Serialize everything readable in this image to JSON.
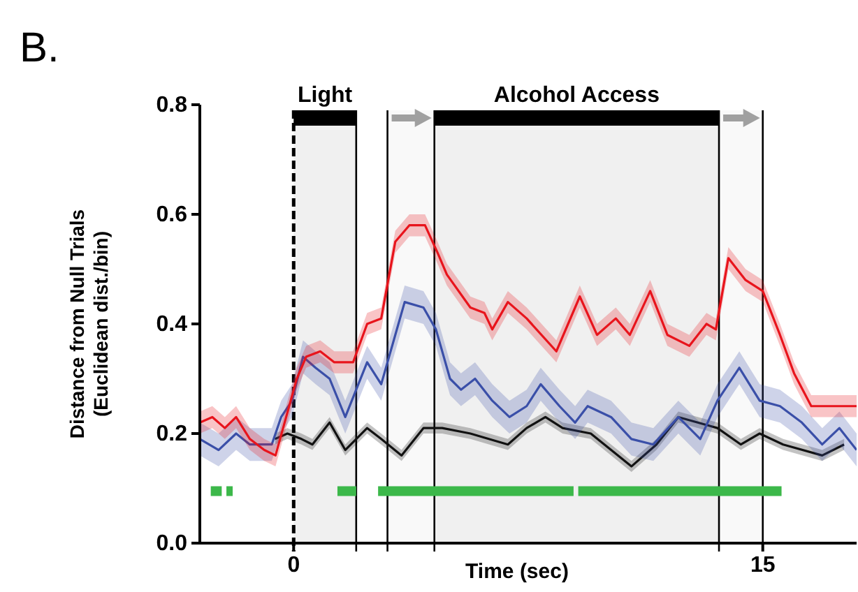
{
  "chart_data": {
    "type": "line",
    "title": "B.",
    "xlabel": "Time (sec)",
    "ylabel": "Distance from Null Trials\n(Euclidean dist./bin)",
    "xlim": [
      -3,
      18
    ],
    "xticks": [
      0,
      15
    ],
    "ylim": [
      0,
      0.8
    ],
    "yticks": [
      {
        "value": 0,
        "label": "0.0"
      },
      {
        "value": 0.2,
        "label": "0.2"
      },
      {
        "value": 0.4,
        "label": "0.4"
      },
      {
        "value": 0.6,
        "label": "0.6"
      },
      {
        "value": 0.8,
        "label": "0.8"
      }
    ],
    "grid": false,
    "ref_lines": [
      {
        "axis": "x",
        "value": 0,
        "line_style": "dashed"
      },
      {
        "axis": "x",
        "value": 2
      },
      {
        "axis": "x",
        "value": 3
      },
      {
        "axis": "x",
        "value": 4.5
      },
      {
        "axis": "x",
        "value": 13.6
      },
      {
        "axis": "x",
        "value": 15
      }
    ],
    "bands": [
      {
        "axis": "x",
        "from": 0,
        "to": 2,
        "label": "Light",
        "color": "#000000"
      },
      {
        "axis": "x",
        "from": 3,
        "to": 4.5,
        "color": "#a0a0a0"
      },
      {
        "axis": "x",
        "from": 4.5,
        "to": 13.6,
        "label": "Alcohol Access",
        "color": "#000000"
      },
      {
        "axis": "x",
        "from": 13.6,
        "to": 15,
        "color": "#a0a0a0"
      }
    ],
    "series": [
      {
        "color": "#e8141c",
        "x": [
          -3,
          -2.6,
          -2.2,
          -1.84,
          -1.4,
          -0.94,
          -0.58,
          0.1,
          0.4,
          0.85,
          1.3,
          1.9,
          2.35,
          2.8,
          3.25,
          3.7,
          4.2,
          4.6,
          4.9,
          5.65,
          6.1,
          6.35,
          6.85,
          7.45,
          8.4,
          9.15,
          9.7,
          10.3,
          10.75,
          11.4,
          11.95,
          12.65,
          13.2,
          13.5,
          13.9,
          14.45,
          15,
          15.55,
          16,
          16.55,
          17.3,
          18
        ],
        "values": [
          0.22,
          0.23,
          0.21,
          0.23,
          0.19,
          0.17,
          0.16,
          0.3,
          0.34,
          0.35,
          0.33,
          0.33,
          0.4,
          0.41,
          0.55,
          0.58,
          0.58,
          0.53,
          0.49,
          0.43,
          0.42,
          0.39,
          0.44,
          0.41,
          0.35,
          0.45,
          0.38,
          0.41,
          0.38,
          0.46,
          0.38,
          0.36,
          0.4,
          0.39,
          0.52,
          0.48,
          0.46,
          0.38,
          0.31,
          0.25,
          0.25,
          0.25
        ],
        "lower": [
          0.2,
          0.21,
          0.19,
          0.21,
          0.17,
          0.15,
          0.14,
          0.28,
          0.32,
          0.33,
          0.31,
          0.31,
          0.38,
          0.39,
          0.53,
          0.56,
          0.56,
          0.51,
          0.47,
          0.41,
          0.4,
          0.37,
          0.42,
          0.39,
          0.33,
          0.43,
          0.36,
          0.39,
          0.36,
          0.44,
          0.36,
          0.34,
          0.38,
          0.37,
          0.5,
          0.46,
          0.44,
          0.36,
          0.29,
          0.23,
          0.23,
          0.23
        ],
        "upper": [
          0.24,
          0.25,
          0.23,
          0.25,
          0.21,
          0.19,
          0.18,
          0.32,
          0.36,
          0.37,
          0.35,
          0.35,
          0.42,
          0.43,
          0.57,
          0.6,
          0.6,
          0.55,
          0.51,
          0.45,
          0.44,
          0.41,
          0.46,
          0.43,
          0.37,
          0.47,
          0.4,
          0.43,
          0.4,
          0.48,
          0.4,
          0.38,
          0.42,
          0.41,
          0.54,
          0.5,
          0.48,
          0.4,
          0.33,
          0.27,
          0.27,
          0.27
        ]
      },
      {
        "color": "#3a4fa8",
        "x": [
          -3,
          -2.4,
          -1.84,
          -1.4,
          -0.7,
          -0.4,
          -0.05,
          0.3,
          0.7,
          1.15,
          1.65,
          2,
          2.35,
          2.8,
          3.25,
          3.55,
          4.15,
          4.55,
          5,
          5.35,
          5.8,
          6.35,
          6.9,
          7.45,
          7.9,
          8.5,
          9,
          9.4,
          10.15,
          10.8,
          11.5,
          12.3,
          13,
          13.55,
          14.25,
          14.9,
          15.55,
          16.25,
          16.9,
          17.45,
          18
        ],
        "values": [
          0.19,
          0.17,
          0.2,
          0.18,
          0.18,
          0.23,
          0.26,
          0.34,
          0.32,
          0.3,
          0.23,
          0.28,
          0.33,
          0.29,
          0.38,
          0.44,
          0.43,
          0.39,
          0.3,
          0.28,
          0.3,
          0.26,
          0.23,
          0.25,
          0.29,
          0.25,
          0.22,
          0.25,
          0.23,
          0.19,
          0.18,
          0.23,
          0.19,
          0.26,
          0.32,
          0.26,
          0.25,
          0.22,
          0.18,
          0.21,
          0.17
        ],
        "lower": [
          0.16,
          0.14,
          0.17,
          0.15,
          0.15,
          0.2,
          0.23,
          0.31,
          0.29,
          0.27,
          0.2,
          0.25,
          0.3,
          0.26,
          0.35,
          0.41,
          0.4,
          0.36,
          0.27,
          0.25,
          0.27,
          0.23,
          0.2,
          0.22,
          0.26,
          0.22,
          0.19,
          0.22,
          0.2,
          0.16,
          0.15,
          0.2,
          0.16,
          0.23,
          0.29,
          0.23,
          0.22,
          0.19,
          0.15,
          0.18,
          0.14
        ],
        "upper": [
          0.22,
          0.2,
          0.23,
          0.21,
          0.21,
          0.26,
          0.29,
          0.37,
          0.35,
          0.33,
          0.26,
          0.31,
          0.36,
          0.32,
          0.41,
          0.47,
          0.46,
          0.42,
          0.33,
          0.31,
          0.33,
          0.29,
          0.26,
          0.28,
          0.32,
          0.28,
          0.25,
          0.28,
          0.26,
          0.22,
          0.21,
          0.26,
          0.22,
          0.29,
          0.35,
          0.29,
          0.28,
          0.25,
          0.21,
          0.24,
          0.2
        ]
      },
      {
        "color": "#111111",
        "x": [
          -0.6,
          -0.2,
          0.25,
          0.6,
          1.15,
          1.65,
          2.35,
          2.8,
          3.45,
          4.15,
          4.75,
          5.65,
          6.85,
          7.45,
          8.05,
          8.6,
          9.5,
          10.8,
          11.6,
          12.3,
          13.55,
          14.3,
          14.9,
          15.65,
          16.9,
          17.6
        ],
        "values": [
          0.19,
          0.2,
          0.19,
          0.18,
          0.22,
          0.17,
          0.21,
          0.19,
          0.16,
          0.21,
          0.21,
          0.2,
          0.18,
          0.21,
          0.23,
          0.21,
          0.2,
          0.14,
          0.18,
          0.23,
          0.21,
          0.18,
          0.2,
          0.18,
          0.16,
          0.18
        ],
        "lower": [
          0.18,
          0.19,
          0.18,
          0.17,
          0.21,
          0.16,
          0.2,
          0.18,
          0.15,
          0.2,
          0.2,
          0.19,
          0.17,
          0.2,
          0.22,
          0.2,
          0.19,
          0.13,
          0.17,
          0.22,
          0.2,
          0.17,
          0.19,
          0.17,
          0.15,
          0.17
        ],
        "upper": [
          0.2,
          0.21,
          0.2,
          0.19,
          0.23,
          0.18,
          0.22,
          0.2,
          0.17,
          0.22,
          0.22,
          0.21,
          0.19,
          0.22,
          0.24,
          0.22,
          0.21,
          0.15,
          0.19,
          0.24,
          0.22,
          0.19,
          0.21,
          0.19,
          0.17,
          0.19
        ]
      },
      {
        "color": "#3cb84a",
        "x": [
          -2.65,
          -2.3,
          -2.25,
          -2.15,
          -1.95,
          -1.9,
          1.4,
          2.0,
          2.3,
          2.7,
          8.95,
          9.0,
          9.1,
          15.6
        ],
        "values": [
          0.095,
          0.095,
          null,
          0.095,
          0.095,
          null,
          0.095,
          0.095,
          null,
          0.095,
          0.095,
          null,
          0.095,
          0.095
        ]
      }
    ]
  }
}
